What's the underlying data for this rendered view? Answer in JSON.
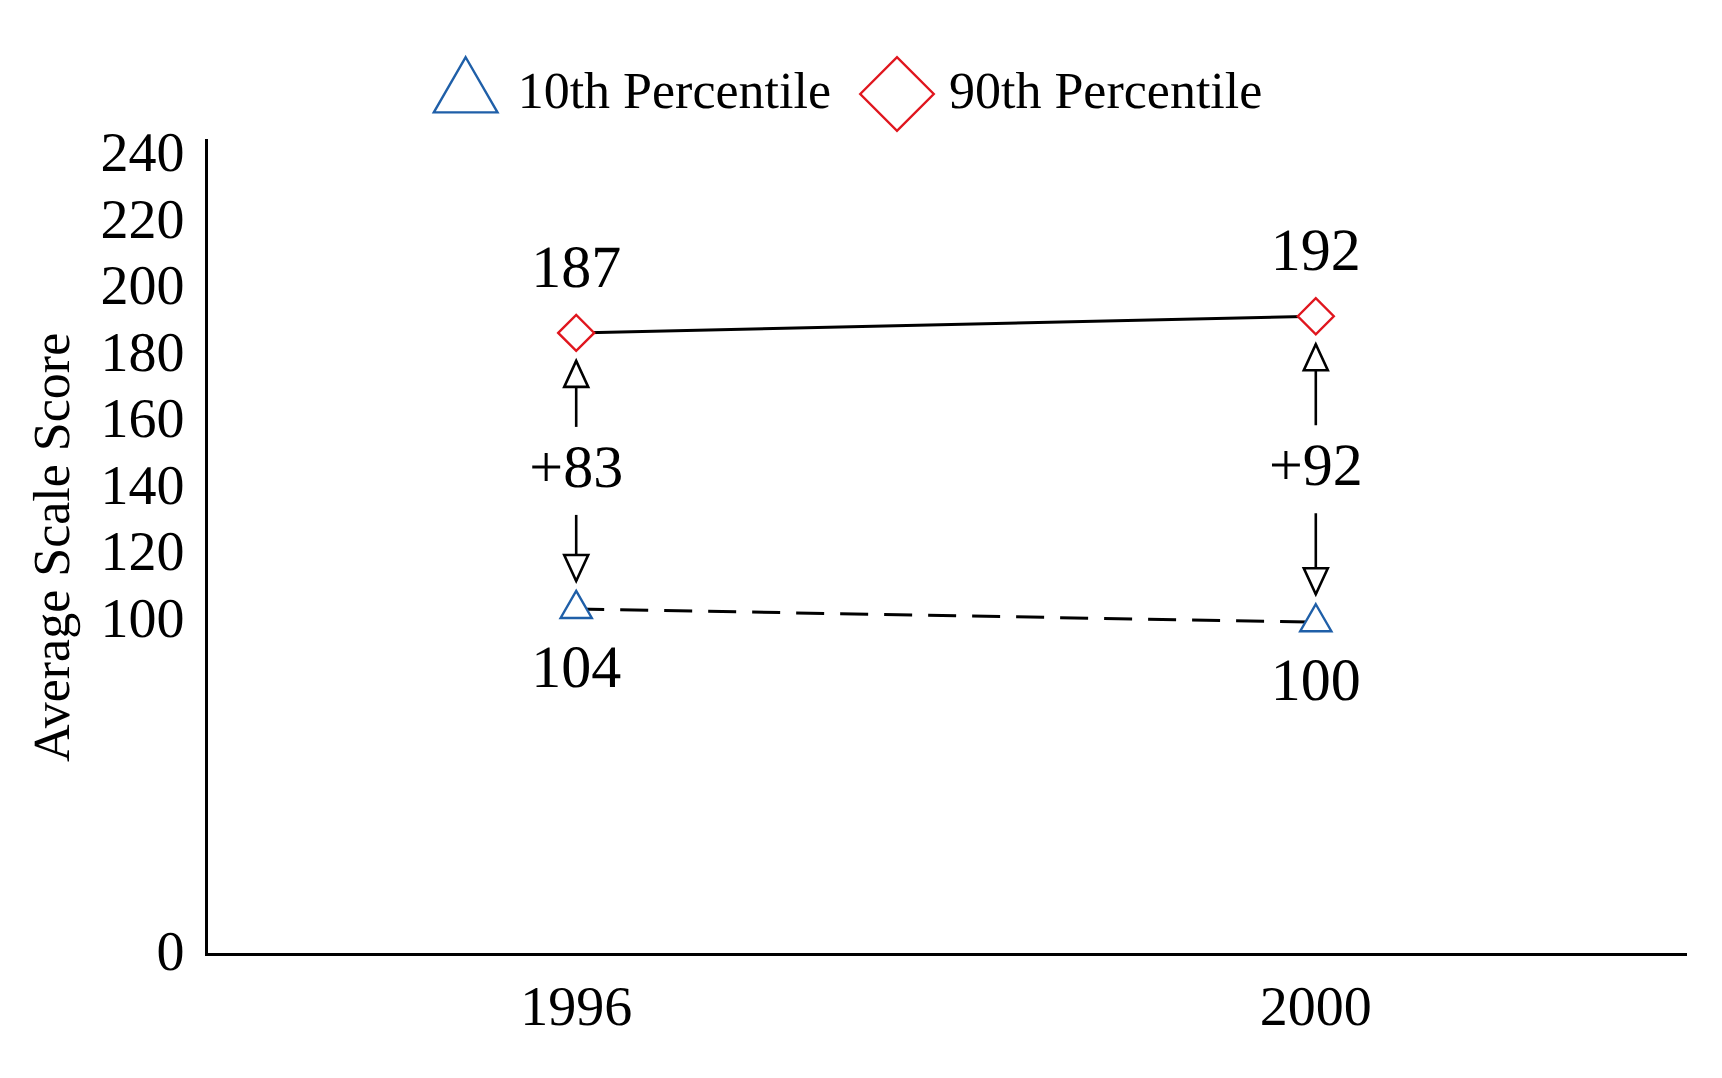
{
  "chart_data": {
    "type": "line",
    "ylabel": "Average Scale Score",
    "categories": [
      "1996",
      "2000"
    ],
    "series": [
      {
        "name": "10th Percentile",
        "color": "#1f5fa8",
        "values": [
          104,
          100
        ],
        "marker": "triangle",
        "line_style": "dashed"
      },
      {
        "name": "90th Percentile",
        "color": "#e0161e",
        "values": [
          187,
          192
        ],
        "marker": "diamond",
        "line_style": "solid"
      }
    ],
    "ylim": [
      0,
      245
    ],
    "yticks": [
      0,
      100,
      120,
      140,
      160,
      180,
      200,
      220,
      240
    ],
    "grid": false,
    "legend": "top",
    "data_labels": true,
    "annotations": [
      "+83",
      "+92"
    ]
  }
}
